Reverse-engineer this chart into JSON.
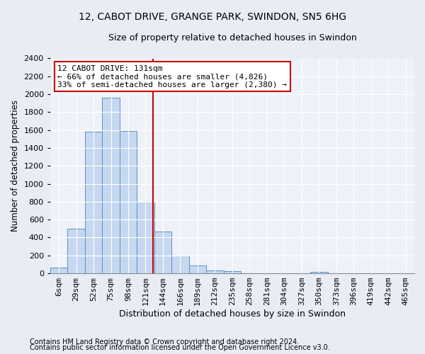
{
  "title1": "12, CABOT DRIVE, GRANGE PARK, SWINDON, SN5 6HG",
  "title2": "Size of property relative to detached houses in Swindon",
  "xlabel": "Distribution of detached houses by size in Swindon",
  "ylabel": "Number of detached properties",
  "footnote1": "Contains HM Land Registry data © Crown copyright and database right 2024.",
  "footnote2": "Contains public sector information licensed under the Open Government Licence v3.0.",
  "categories": [
    "6sqm",
    "29sqm",
    "52sqm",
    "75sqm",
    "98sqm",
    "121sqm",
    "144sqm",
    "166sqm",
    "189sqm",
    "212sqm",
    "235sqm",
    "258sqm",
    "281sqm",
    "304sqm",
    "327sqm",
    "350sqm",
    "373sqm",
    "396sqm",
    "419sqm",
    "442sqm",
    "465sqm"
  ],
  "values": [
    60,
    500,
    1580,
    1960,
    1590,
    800,
    470,
    195,
    90,
    35,
    25,
    0,
    0,
    0,
    0,
    20,
    0,
    0,
    0,
    0,
    0
  ],
  "bar_color": "#c5d8f0",
  "bar_edge_color": "#5b8ec4",
  "annotation_text": "12 CABOT DRIVE: 131sqm\n← 66% of detached houses are smaller (4,826)\n33% of semi-detached houses are larger (2,380) →",
  "annotation_box_color": "#ffffff",
  "annotation_box_edge_color": "#cc0000",
  "vline_color": "#cc0000",
  "vline_x_index": 5.43,
  "ylim": [
    0,
    2400
  ],
  "yticks": [
    0,
    200,
    400,
    600,
    800,
    1000,
    1200,
    1400,
    1600,
    1800,
    2000,
    2200,
    2400
  ],
  "bg_color": "#e8edf5",
  "plot_bg_color": "#eef2f8",
  "title1_fontsize": 10,
  "title2_fontsize": 9,
  "xlabel_fontsize": 9,
  "ylabel_fontsize": 8.5,
  "tick_fontsize": 8,
  "footnote_fontsize": 7.0,
  "annotation_fontsize": 8
}
